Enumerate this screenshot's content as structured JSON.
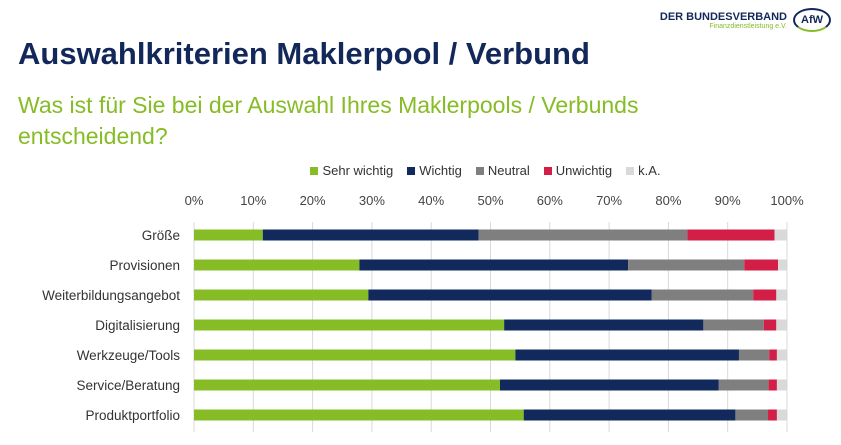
{
  "header": {
    "title": "Auswahlkriterien Maklerpool / Verbund",
    "subtitle": "Was ist für Sie bei der Auswahl Ihres Maklerpools / Verbunds entscheidend?"
  },
  "logo": {
    "line1": "DER BUNDESVERBAND",
    "line2": "Finanzdienstleistung e.V.",
    "badge": "AfW"
  },
  "chart_data": {
    "type": "bar",
    "orientation": "horizontal",
    "stacked": "percent",
    "categories": [
      "Größe",
      "Provisionen",
      "Weiterbildungsangebot",
      "Digitalisierung",
      "Werkzeuge/Tools",
      "Service/Beratung",
      "Produktportfolio"
    ],
    "series": [
      {
        "name": "Sehr wichtig",
        "color": "#86bc25",
        "values": [
          11.6,
          27.9,
          29.4,
          52.3,
          54.2,
          51.6,
          55.6
        ]
      },
      {
        "name": "Wichtig",
        "color": "#12295b",
        "values": [
          36.4,
          45.3,
          47.8,
          33.6,
          37.7,
          36.9,
          35.7
        ]
      },
      {
        "name": "Neutral",
        "color": "#7f7f7f",
        "values": [
          35.2,
          19.6,
          17.1,
          10.2,
          5.1,
          8.4,
          5.5
        ]
      },
      {
        "name": "Unwichtig",
        "color": "#d31f47",
        "values": [
          14.7,
          5.7,
          3.9,
          2.1,
          1.3,
          1.4,
          1.5
        ]
      },
      {
        "name": "k.A.",
        "color": "#d9d9d9",
        "values": [
          2.1,
          1.5,
          1.8,
          1.8,
          1.7,
          1.7,
          1.7
        ]
      }
    ],
    "xticks": [
      "0%",
      "10%",
      "20%",
      "30%",
      "40%",
      "50%",
      "60%",
      "70%",
      "80%",
      "90%",
      "100%"
    ],
    "xlim": [
      0,
      100
    ],
    "grid": true,
    "legend": "top"
  }
}
